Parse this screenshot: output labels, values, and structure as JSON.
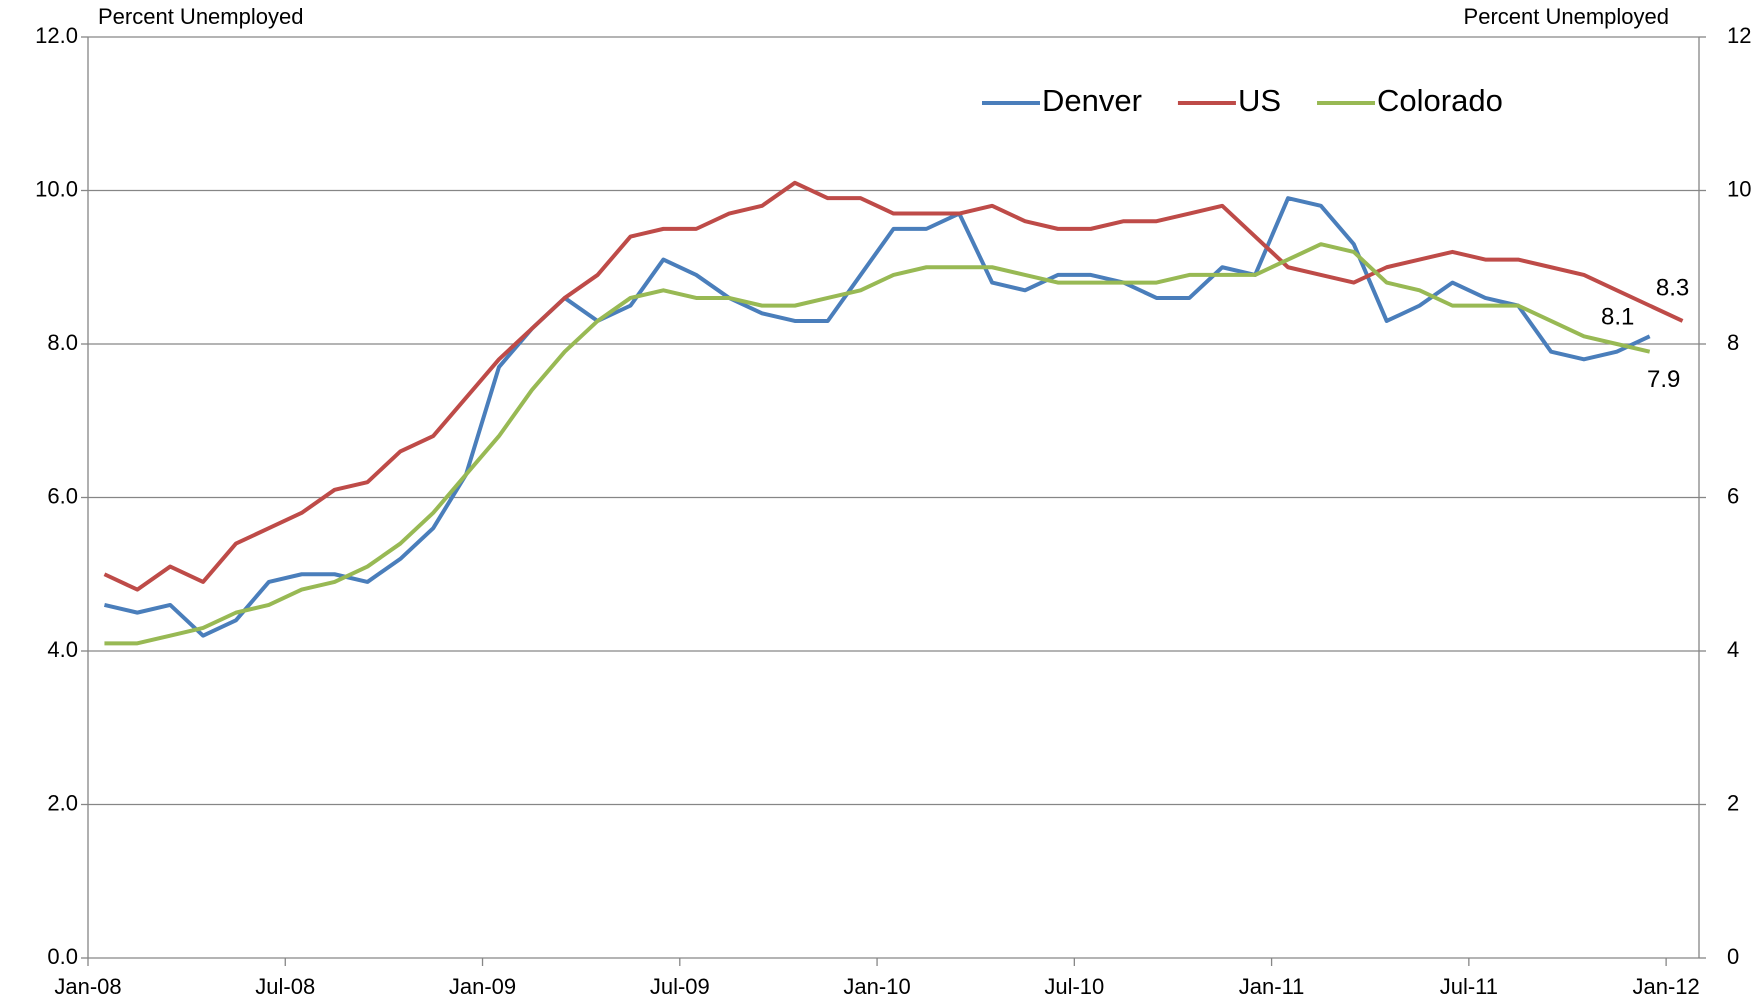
{
  "chart_data": {
    "type": "line",
    "ylabel": "Percent Unemployed",
    "y2label": "Percent Unemployed",
    "x": [
      "Jan-08",
      null,
      null,
      null,
      null,
      null,
      "Jul-08",
      null,
      null,
      null,
      null,
      null,
      "Jan-09",
      null,
      null,
      null,
      null,
      null,
      "Jul-09",
      null,
      null,
      null,
      null,
      null,
      "Jan-10",
      null,
      null,
      null,
      null,
      null,
      "Jul-10",
      null,
      null,
      null,
      null,
      null,
      "Jan-11",
      null,
      null,
      null,
      null,
      null,
      "Jul-11",
      null,
      null,
      null,
      null,
      null,
      "Jan-12"
    ],
    "series": [
      {
        "name": "Denver",
        "color": "#4a7ebb",
        "values": [
          4.6,
          4.5,
          4.6,
          4.2,
          4.4,
          4.9,
          5.0,
          5.0,
          4.9,
          5.2,
          5.6,
          6.3,
          7.7,
          8.2,
          8.6,
          8.3,
          8.5,
          9.1,
          8.9,
          8.6,
          8.4,
          8.3,
          8.3,
          8.9,
          9.5,
          9.5,
          9.7,
          8.8,
          8.7,
          8.9,
          8.9,
          8.8,
          8.6,
          8.6,
          9.0,
          8.9,
          9.9,
          9.8,
          9.3,
          8.3,
          8.5,
          8.8,
          8.6,
          8.5,
          7.9,
          7.8,
          7.9,
          8.1,
          null
        ]
      },
      {
        "name": "US",
        "color": "#be4b48",
        "values": [
          5.0,
          4.8,
          5.1,
          4.9,
          5.4,
          5.6,
          5.8,
          6.1,
          6.2,
          6.6,
          6.8,
          7.3,
          7.8,
          8.2,
          8.6,
          8.9,
          9.4,
          9.5,
          9.5,
          9.7,
          9.8,
          10.1,
          9.9,
          9.9,
          9.7,
          9.7,
          9.7,
          9.8,
          9.6,
          9.5,
          9.5,
          9.6,
          9.6,
          9.7,
          9.8,
          9.4,
          9.0,
          8.9,
          8.8,
          9.0,
          9.1,
          9.2,
          9.1,
          9.1,
          9.0,
          8.9,
          8.7,
          8.5,
          8.3
        ]
      },
      {
        "name": "Colorado",
        "color": "#98b954",
        "values": [
          4.1,
          4.1,
          4.2,
          4.3,
          4.5,
          4.6,
          4.8,
          4.9,
          5.1,
          5.4,
          5.8,
          6.3,
          6.8,
          7.4,
          7.9,
          8.3,
          8.6,
          8.7,
          8.6,
          8.6,
          8.5,
          8.5,
          8.6,
          8.7,
          8.9,
          9.0,
          9.0,
          9.0,
          8.9,
          8.8,
          8.8,
          8.8,
          8.8,
          8.9,
          8.9,
          8.9,
          9.1,
          9.3,
          9.2,
          8.8,
          8.7,
          8.5,
          8.5,
          8.5,
          8.3,
          8.1,
          8.0,
          7.9,
          null
        ]
      }
    ],
    "ylim": [
      0,
      12
    ],
    "yticks": [
      {
        "value": 0,
        "label": "0.0"
      },
      {
        "value": 2,
        "label": "2.0"
      },
      {
        "value": 4,
        "label": "4.0"
      },
      {
        "value": 6,
        "label": "6.0"
      },
      {
        "value": 8,
        "label": "8.0"
      },
      {
        "value": 10,
        "label": "10.0"
      },
      {
        "value": 12,
        "label": "12.0"
      }
    ],
    "y2lim": [
      0,
      12
    ],
    "y2ticks": [
      0,
      2,
      4,
      6,
      8,
      10,
      12
    ],
    "grid": true,
    "legend": "top-right",
    "data_labels": "last"
  }
}
